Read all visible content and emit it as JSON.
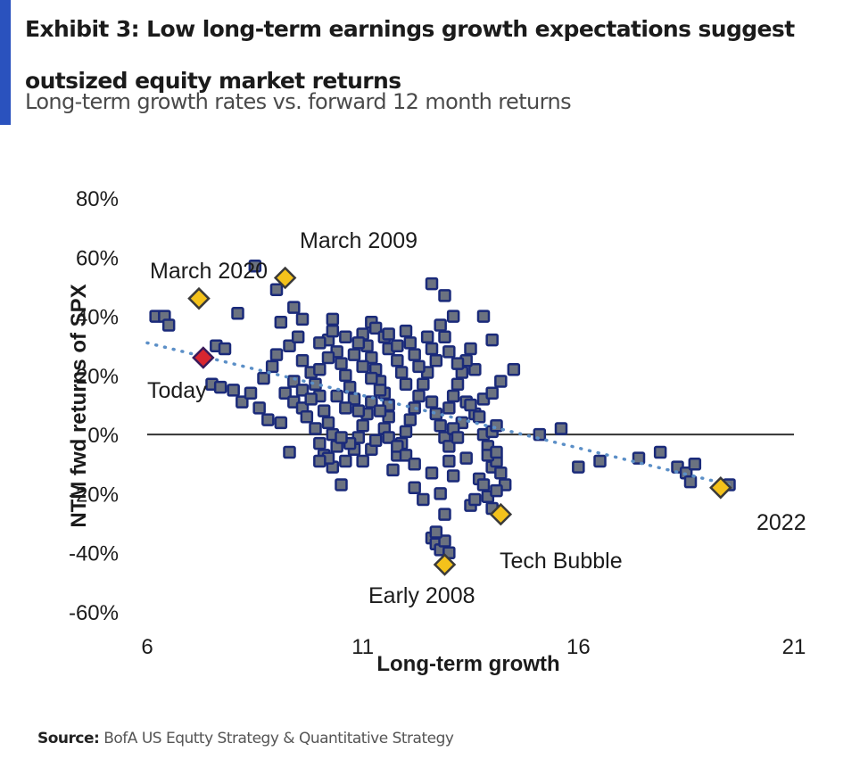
{
  "header": {
    "title": "Exhibit 3: Low long-term earnings growth expectations suggest outsized equity market returns",
    "subtitle": "Long-term growth rates vs. forward 12 month returns",
    "accent_color": "#2a52be"
  },
  "footer": {
    "source_label": "Source:",
    "source_text": " BofA US Equtty Strategy & Quantitative Strategy"
  },
  "chart_data": {
    "type": "scatter",
    "title": "Long-term growth rates vs. forward 12 month returns",
    "xlabel": "Long-term growth",
    "ylabel": "NTM fwd returns of SPX",
    "xlim": [
      6,
      21
    ],
    "ylim": [
      -60,
      80
    ],
    "x_ticks": [
      "6",
      "11",
      "16",
      "21"
    ],
    "x_tick_values": [
      6,
      11,
      16,
      21
    ],
    "y_ticks": [
      "80%",
      "60%",
      "40%",
      "20%",
      "0%",
      "-20%",
      "-40%",
      "-60%"
    ],
    "y_tick_values": [
      80,
      60,
      40,
      20,
      0,
      -20,
      -40,
      -60
    ],
    "zero_line": true,
    "grid": false,
    "colors": {
      "point_fill": "#6b7280",
      "point_stroke": "#1a2a7a",
      "highlight_fill": "#f4c21b",
      "today_fill": "#d8262f",
      "trendline": "#5b8fc7",
      "zero_line": "#333333"
    },
    "trendline": {
      "style": "dotted",
      "x": [
        6,
        19.5
      ],
      "y": [
        31,
        -17
      ]
    },
    "highlights": [
      {
        "label": "March 2020",
        "x": 7.2,
        "y": 46,
        "color": "highlight"
      },
      {
        "label": "March 2009",
        "x": 9.2,
        "y": 53,
        "color": "highlight"
      },
      {
        "label": "Today",
        "x": 7.3,
        "y": 26,
        "color": "today"
      },
      {
        "label": "Early 2008",
        "x": 12.9,
        "y": -44,
        "color": "highlight"
      },
      {
        "label": "Tech Bubble",
        "x": 14.2,
        "y": -27,
        "color": "highlight"
      },
      {
        "label": "2022",
        "x": 19.3,
        "y": -18,
        "color": "highlight"
      }
    ],
    "points": [
      [
        6.2,
        40
      ],
      [
        6.4,
        40
      ],
      [
        6.5,
        37
      ],
      [
        8.1,
        41
      ],
      [
        7.6,
        30
      ],
      [
        7.8,
        29
      ],
      [
        7.5,
        17
      ],
      [
        7.7,
        16
      ],
      [
        8.0,
        15
      ],
      [
        8.2,
        11
      ],
      [
        8.6,
        9
      ],
      [
        8.8,
        5
      ],
      [
        9.1,
        4
      ],
      [
        9.3,
        -6
      ],
      [
        8.5,
        57
      ],
      [
        9.0,
        49
      ],
      [
        9.4,
        43
      ],
      [
        9.6,
        39
      ],
      [
        9.1,
        38
      ],
      [
        10.3,
        39
      ],
      [
        11.2,
        38
      ],
      [
        12.6,
        51
      ],
      [
        12.9,
        47
      ],
      [
        13.1,
        40
      ],
      [
        13.8,
        40
      ],
      [
        14.0,
        32
      ],
      [
        13.6,
        22
      ],
      [
        14.5,
        22
      ],
      [
        8.4,
        14
      ],
      [
        8.7,
        19
      ],
      [
        8.9,
        23
      ],
      [
        9.0,
        27
      ],
      [
        9.3,
        30
      ],
      [
        9.5,
        33
      ],
      [
        9.6,
        25
      ],
      [
        9.8,
        21
      ],
      [
        9.9,
        17
      ],
      [
        10.0,
        13
      ],
      [
        10.1,
        8
      ],
      [
        10.2,
        4
      ],
      [
        10.3,
        0
      ],
      [
        10.4,
        -4
      ],
      [
        9.2,
        14
      ],
      [
        9.4,
        11
      ],
      [
        9.6,
        9
      ],
      [
        9.7,
        6
      ],
      [
        9.9,
        2
      ],
      [
        10.0,
        -3
      ],
      [
        10.1,
        -7
      ],
      [
        10.3,
        -11
      ],
      [
        10.5,
        -17
      ],
      [
        10.6,
        -9
      ],
      [
        10.8,
        -5
      ],
      [
        10.9,
        -1
      ],
      [
        11.0,
        3
      ],
      [
        11.1,
        7
      ],
      [
        10.2,
        32
      ],
      [
        10.4,
        28
      ],
      [
        10.5,
        24
      ],
      [
        10.6,
        20
      ],
      [
        10.7,
        16
      ],
      [
        10.8,
        12
      ],
      [
        10.9,
        8
      ],
      [
        11.0,
        34
      ],
      [
        11.1,
        30
      ],
      [
        11.2,
        26
      ],
      [
        11.3,
        22
      ],
      [
        11.4,
        18
      ],
      [
        11.5,
        14
      ],
      [
        11.6,
        10
      ],
      [
        11.0,
        -9
      ],
      [
        11.2,
        -5
      ],
      [
        11.3,
        -2
      ],
      [
        11.5,
        2
      ],
      [
        11.6,
        6
      ],
      [
        11.7,
        -12
      ],
      [
        11.8,
        -7
      ],
      [
        11.9,
        -3
      ],
      [
        12.0,
        1
      ],
      [
        12.1,
        5
      ],
      [
        12.2,
        9
      ],
      [
        12.3,
        13
      ],
      [
        12.4,
        17
      ],
      [
        12.5,
        21
      ],
      [
        11.3,
        36
      ],
      [
        11.5,
        33
      ],
      [
        11.6,
        29
      ],
      [
        11.8,
        25
      ],
      [
        11.9,
        21
      ],
      [
        12.0,
        35
      ],
      [
        12.1,
        31
      ],
      [
        12.2,
        27
      ],
      [
        12.3,
        23
      ],
      [
        12.5,
        33
      ],
      [
        12.6,
        29
      ],
      [
        12.7,
        25
      ],
      [
        12.8,
        37
      ],
      [
        12.9,
        33
      ],
      [
        12.6,
        11
      ],
      [
        12.7,
        7
      ],
      [
        12.8,
        3
      ],
      [
        12.9,
        -1
      ],
      [
        13.0,
        9
      ],
      [
        13.1,
        13
      ],
      [
        13.2,
        17
      ],
      [
        13.3,
        21
      ],
      [
        13.4,
        25
      ],
      [
        13.5,
        29
      ],
      [
        13.0,
        28
      ],
      [
        13.2,
        24
      ],
      [
        13.4,
        11
      ],
      [
        13.6,
        7
      ],
      [
        12.2,
        -18
      ],
      [
        12.4,
        -22
      ],
      [
        12.8,
        -20
      ],
      [
        12.6,
        -13
      ],
      [
        12.9,
        -27
      ],
      [
        12.6,
        -35
      ],
      [
        12.7,
        -37
      ],
      [
        12.8,
        -39
      ],
      [
        12.9,
        -36
      ],
      [
        13.0,
        -40
      ],
      [
        12.7,
        -33
      ],
      [
        13.0,
        -9
      ],
      [
        13.1,
        -14
      ],
      [
        13.5,
        -24
      ],
      [
        13.6,
        -22
      ],
      [
        13.7,
        -15
      ],
      [
        13.8,
        -17
      ],
      [
        13.9,
        -21
      ],
      [
        14.0,
        -11
      ],
      [
        14.1,
        -9
      ],
      [
        14.2,
        -13
      ],
      [
        14.3,
        -17
      ],
      [
        14.0,
        -25
      ],
      [
        14.1,
        -19
      ],
      [
        13.8,
        0
      ],
      [
        13.9,
        -4
      ],
      [
        14.0,
        1
      ],
      [
        14.1,
        3
      ],
      [
        13.7,
        6
      ],
      [
        13.5,
        10
      ],
      [
        13.8,
        12
      ],
      [
        14.0,
        14
      ],
      [
        14.2,
        18
      ],
      [
        13.3,
        4
      ],
      [
        13.1,
        2
      ],
      [
        13.9,
        -7
      ],
      [
        14.1,
        -6
      ],
      [
        13.0,
        -4
      ],
      [
        13.2,
        -1
      ],
      [
        13.4,
        -8
      ],
      [
        15.1,
        0
      ],
      [
        15.6,
        2
      ],
      [
        16.0,
        -11
      ],
      [
        16.5,
        -9
      ],
      [
        17.4,
        -8
      ],
      [
        17.9,
        -6
      ],
      [
        18.3,
        -11
      ],
      [
        18.5,
        -13
      ],
      [
        18.7,
        -10
      ],
      [
        18.6,
        -16
      ],
      [
        19.5,
        -17
      ],
      [
        9.4,
        18
      ],
      [
        9.6,
        15
      ],
      [
        9.8,
        12
      ],
      [
        10.0,
        22
      ],
      [
        10.2,
        26
      ],
      [
        10.4,
        13
      ],
      [
        10.6,
        9
      ],
      [
        10.8,
        27
      ],
      [
        11.0,
        23
      ],
      [
        11.2,
        19
      ],
      [
        11.4,
        15
      ],
      [
        11.6,
        34
      ],
      [
        11.8,
        30
      ],
      [
        12.0,
        17
      ],
      [
        10.0,
        31
      ],
      [
        10.3,
        35
      ],
      [
        10.6,
        33
      ],
      [
        10.9,
        31
      ],
      [
        11.2,
        11
      ],
      [
        11.4,
        8
      ],
      [
        11.6,
        -1
      ],
      [
        11.8,
        -4
      ],
      [
        12.0,
        -7
      ],
      [
        12.2,
        -10
      ],
      [
        10.7,
        -3
      ],
      [
        10.5,
        -1
      ],
      [
        10.2,
        -8
      ],
      [
        10.0,
        -9
      ]
    ]
  }
}
